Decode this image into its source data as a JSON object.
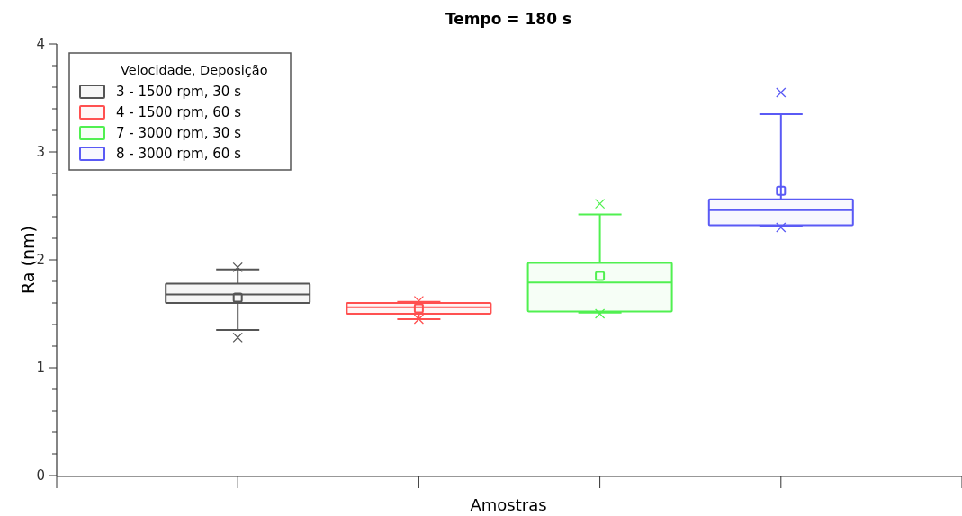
{
  "chart_data": {
    "type": "box",
    "title": "Tempo = 180 s",
    "xlabel": "Amostras",
    "ylabel": "Ra (nm)",
    "legend_title": "Velocidade, Deposição",
    "legend": "top left",
    "marker": "cross",
    "categories": [
      null
    ],
    "ylim": [
      0,
      4
    ],
    "yticks": [
      0,
      {
        "value": 0.2,
        "label": null
      },
      {
        "value": 0.4,
        "label": null
      },
      {
        "value": 0.6,
        "label": null
      },
      {
        "value": 0.8,
        "label": null
      },
      1,
      {
        "value": 1.2,
        "label": null
      },
      {
        "value": 1.4,
        "label": null
      },
      {
        "value": 1.6,
        "label": null
      },
      {
        "value": 1.8,
        "label": null
      },
      2,
      {
        "value": 2.2,
        "label": null
      },
      {
        "value": 2.4,
        "label": null
      },
      {
        "value": 2.6,
        "label": null
      },
      {
        "value": 2.8,
        "label": null
      },
      3,
      {
        "value": 3.2,
        "label": null
      },
      {
        "value": 3.4,
        "label": null
      },
      {
        "value": 3.6,
        "label": null
      },
      {
        "value": 3.8,
        "label": null
      },
      4
    ],
    "series": [
      {
        "name": "3 - 1500 rpm, 30 s",
        "color": "#555555",
        "boxes": [
          {
            "low": 1.35,
            "q1": 1.6,
            "median": 1.68,
            "q3": 1.78,
            "high": 1.91,
            "mean": 1.65,
            "outliers": [
              1.93,
              1.28
            ]
          }
        ]
      },
      {
        "name": "4 - 1500 rpm, 60 s",
        "color": "#ff5050",
        "boxes": [
          {
            "low": 1.45,
            "q1": 1.5,
            "median": 1.56,
            "q3": 1.6,
            "high": 1.61,
            "mean": 1.55,
            "outliers": [
              1.62,
              1.45
            ]
          }
        ]
      },
      {
        "name": "7 - 3000 rpm, 30 s",
        "color": "#50f050",
        "boxes": [
          {
            "low": 1.51,
            "q1": 1.52,
            "median": 1.79,
            "q3": 1.97,
            "high": 2.42,
            "mean": 1.85,
            "outliers": [
              2.52,
              1.5
            ]
          }
        ]
      },
      {
        "name": "8 - 3000 rpm, 60 s",
        "color": "#5a5af5",
        "boxes": [
          {
            "low": 2.31,
            "q1": 2.32,
            "median": 2.46,
            "q3": 2.56,
            "high": 3.35,
            "mean": 2.64,
            "outliers": [
              3.55,
              2.3
            ]
          }
        ]
      }
    ]
  }
}
